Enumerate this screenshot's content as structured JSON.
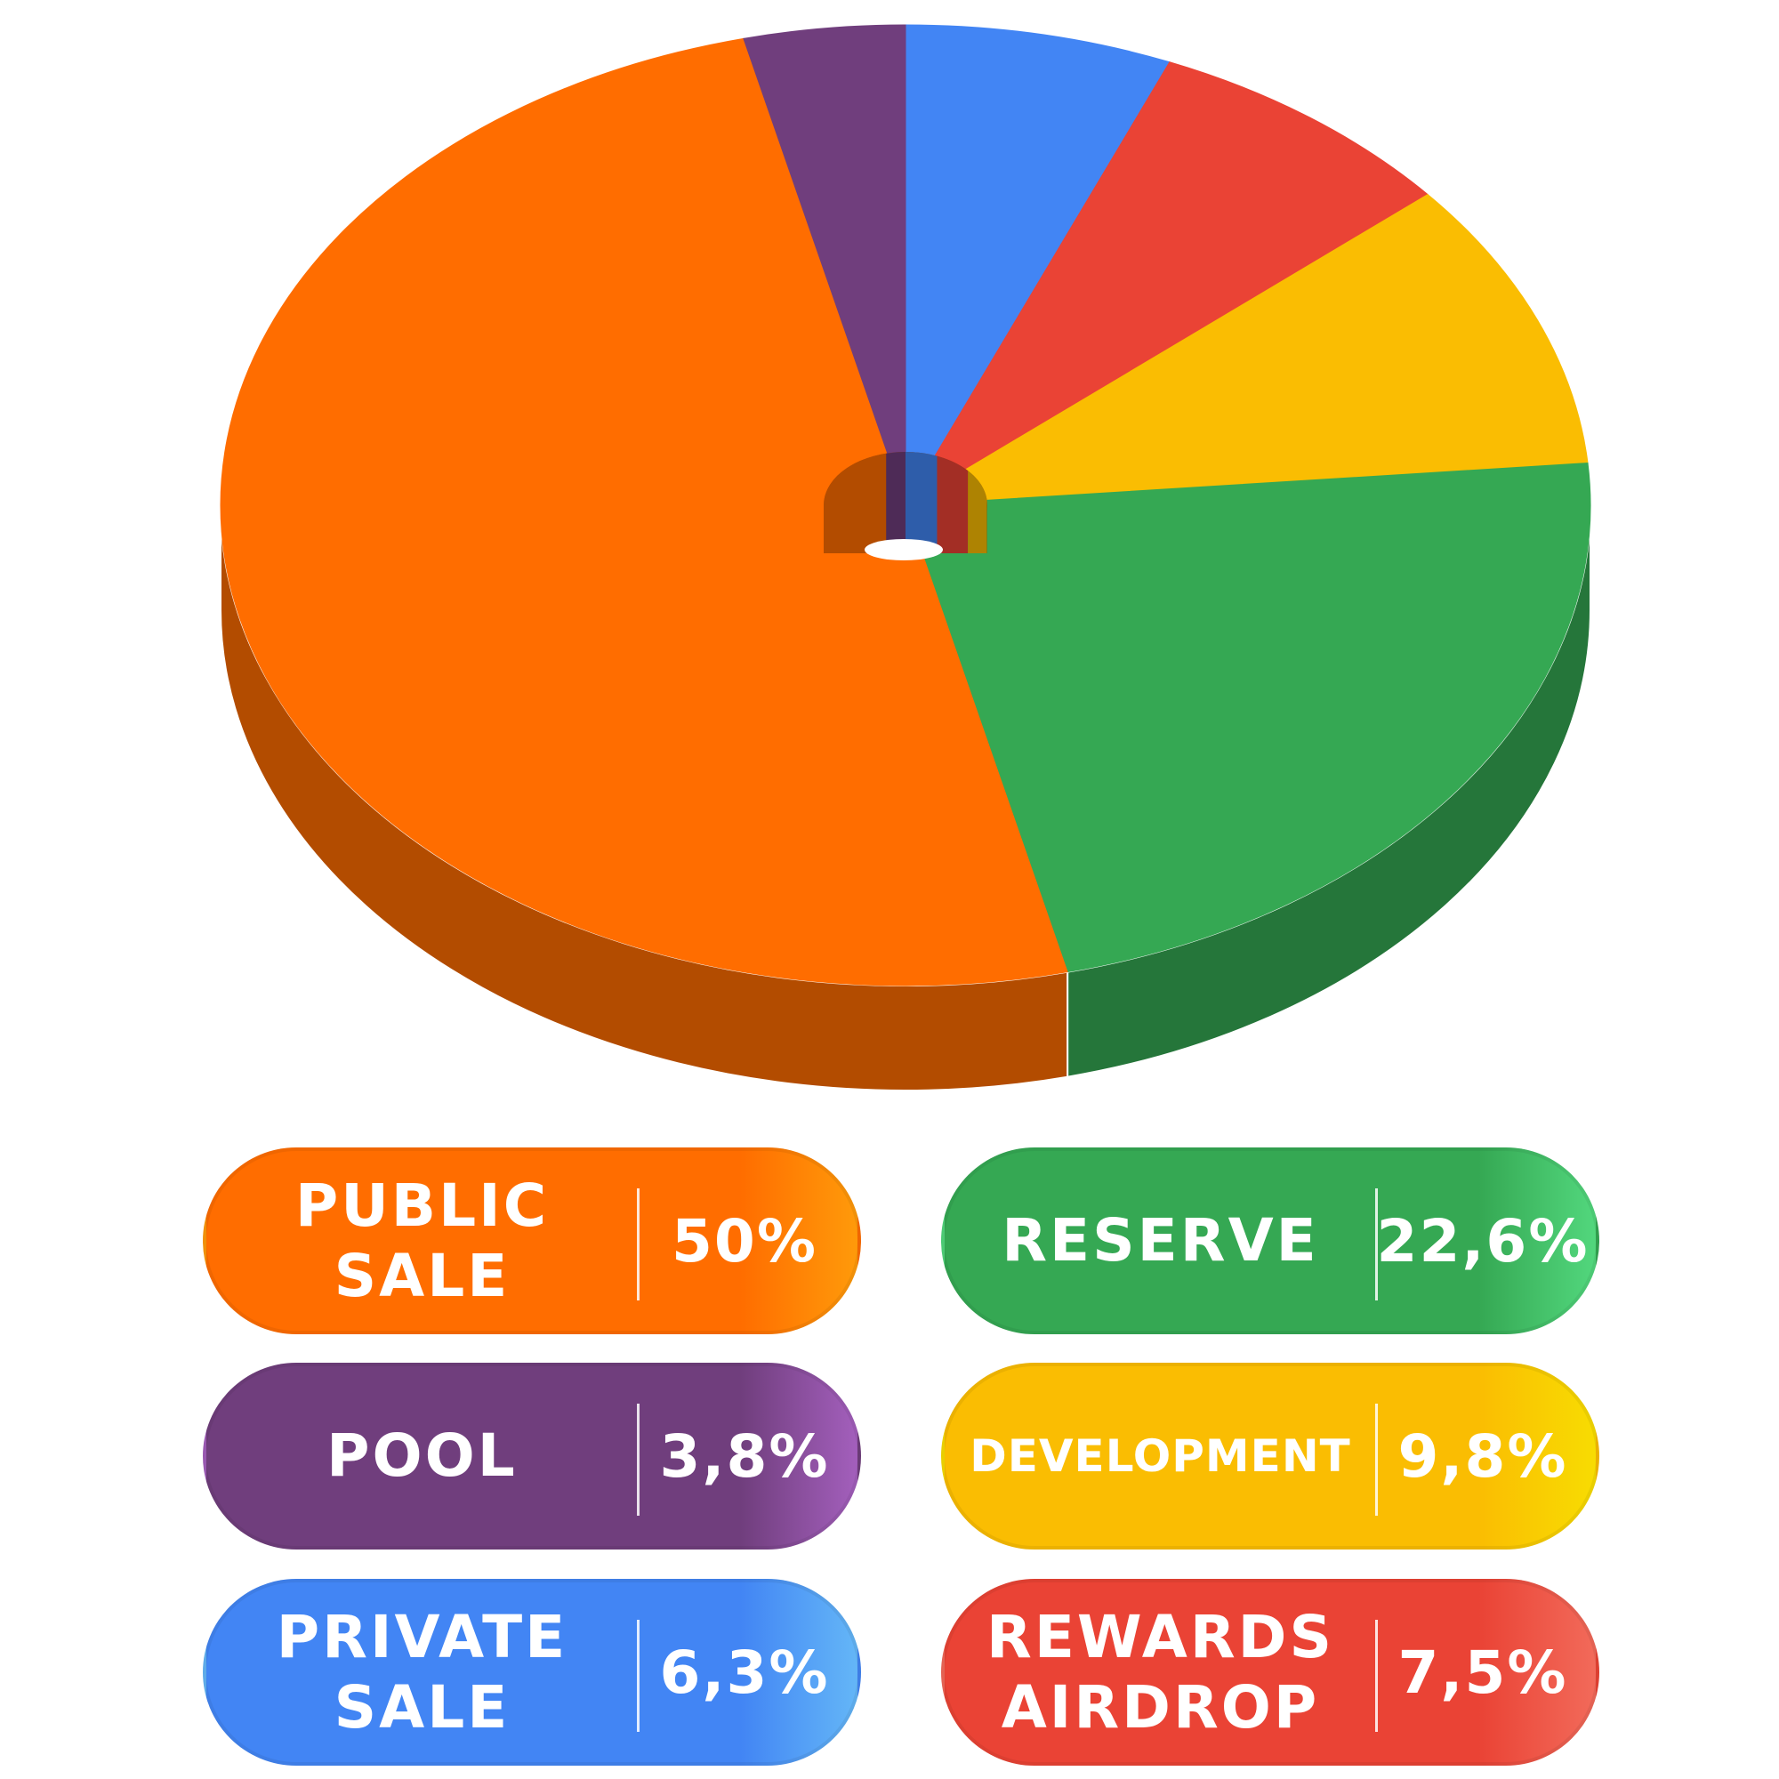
{
  "chart_data": {
    "type": "pie",
    "style": "3d-donut",
    "start_angle_deg": -90,
    "direction": "clockwise",
    "slices": [
      {
        "label": "PRIVATE\nSALE",
        "value": 6.3,
        "display": "6,3%",
        "color": "#4285F4",
        "side_color": "#2E5DAA",
        "gradient_end": "#64B6F7"
      },
      {
        "label": "REWARDS\nAIRDROP",
        "value": 7.5,
        "display": "7,5%",
        "color": "#EA4335",
        "side_color": "#A32E25",
        "gradient_end": "#F26A5A"
      },
      {
        "label": "DEVELOPMENT",
        "value": 9.8,
        "display": "9,8%",
        "color": "#FABD02",
        "side_color": "#AE8302",
        "gradient_end": "#F8DC02"
      },
      {
        "label": "RESERVE",
        "value": 22.6,
        "display": "22,6%",
        "color": "#35A853",
        "side_color": "#25763A",
        "gradient_end": "#52D77D"
      },
      {
        "label": "PUBLIC\nSALE",
        "value": 50,
        "display": "50%",
        "color": "#FF6D00",
        "side_color": "#B34C00",
        "gradient_end": "#FF9A0A"
      },
      {
        "label": "POOL",
        "value": 3.8,
        "display": "3,8%",
        "color": "#703E7D",
        "side_color": "#4E2B57",
        "gradient_end": "#A35FBC"
      }
    ],
    "legend": "bottom"
  },
  "legend_pills": [
    {
      "slice": 4,
      "column": "left",
      "row": 0
    },
    {
      "slice": 3,
      "column": "right",
      "row": 0
    },
    {
      "slice": 5,
      "column": "left",
      "row": 1
    },
    {
      "slice": 2,
      "column": "right",
      "row": 1,
      "small_label": true
    },
    {
      "slice": 0,
      "column": "left",
      "row": 2
    },
    {
      "slice": 1,
      "column": "right",
      "row": 2
    }
  ]
}
